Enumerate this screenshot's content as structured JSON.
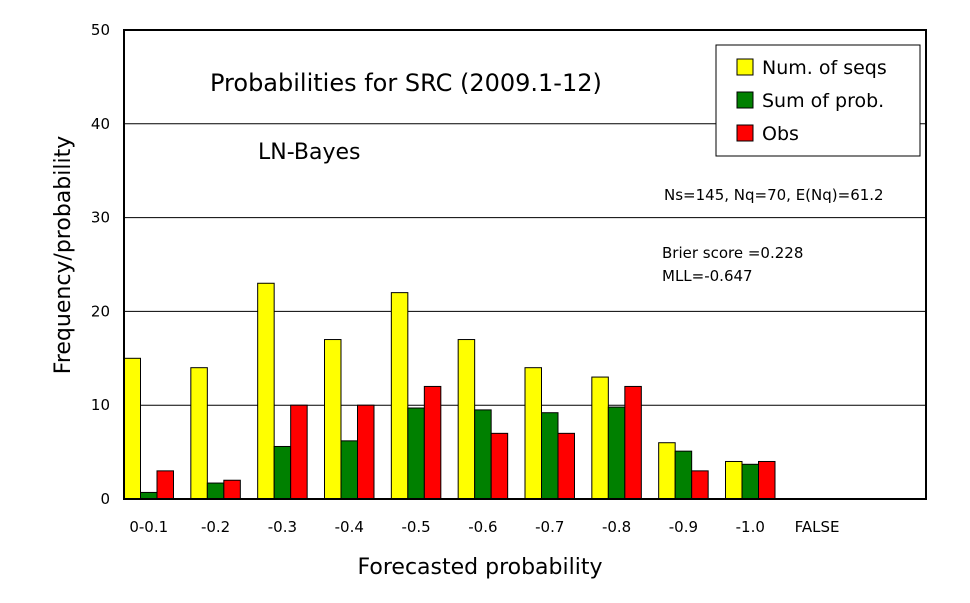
{
  "chart_data": {
    "type": "bar",
    "title": "Probabilities for SRC (2009.1-12)",
    "subtitle": "LN-Bayes",
    "xlabel": "Forecasted probability",
    "ylabel": "Frequency/probability",
    "ylim": [
      0,
      50
    ],
    "yticks": [
      0,
      10,
      20,
      30,
      40,
      50
    ],
    "grid": true,
    "legend_position": "top-right",
    "categories": [
      "0-0.1",
      "-0.2",
      "-0.3",
      "-0.4",
      "-0.5",
      "-0.6",
      "-0.7",
      "-0.8",
      "-0.9",
      "-1.0",
      "FALSE"
    ],
    "series": [
      {
        "name": "Num. of seqs",
        "color": "#ffff00",
        "values": [
          15,
          14,
          23,
          17,
          22,
          17,
          14,
          13,
          6,
          4,
          0
        ]
      },
      {
        "name": "Sum of prob.",
        "color": "#008000",
        "values": [
          0.7,
          1.7,
          5.6,
          6.2,
          9.7,
          9.5,
          9.2,
          9.8,
          5.1,
          3.7,
          0
        ]
      },
      {
        "name": "Obs",
        "color": "#ff0000",
        "values": [
          3,
          2,
          10,
          10,
          12,
          7,
          7,
          12,
          3,
          4,
          0
        ]
      }
    ],
    "annotations": [
      "Ns=145, Nq=70, E(Nq)=61.2",
      "Brier score =0.228",
      "MLL=-0.647"
    ]
  }
}
